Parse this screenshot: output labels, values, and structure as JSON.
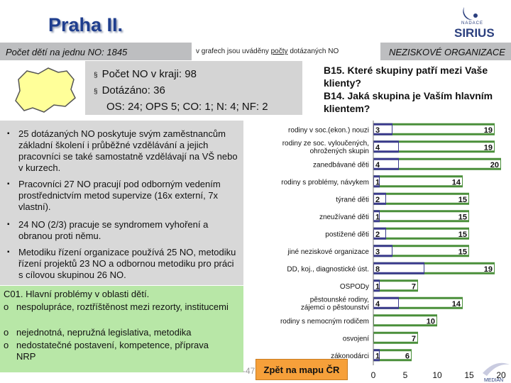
{
  "header": {
    "title": "Praha II.",
    "subtitle_left": "Počet dětí na jednu NO: 1845",
    "subtitle_mid_prefix": "v grafech jsou uváděny",
    "subtitle_mid_underlined": "počty",
    "subtitle_mid_suffix": "dotázaných NO",
    "subtitle_right": "NEZISKOVÉ ORGANIZACE"
  },
  "logo": {
    "small_text": "NADACE",
    "text": "SIRIUS",
    "bottom_text": "MEDIAN"
  },
  "counts": {
    "bullet": "§",
    "line1": "Počet NO v kraji: 98",
    "line2": "Dotázáno: 36",
    "line3": "OS: 24; OPS 5; CO: 1; N: 4; NF: 2"
  },
  "question": {
    "q1": "B15. Které skupiny patří mezi Vaše klienty?",
    "q2": "B14. Jaká skupina je Vaším hlavním klientem?"
  },
  "notes": {
    "bullet": "▪",
    "items": [
      "25 dotázaných NO poskytuje svým zaměstnancům základní školení i průběžné vzdělávání a jejich pracovníci se také samostatně vzdělávají na VŠ nebo v kurzech.",
      "Pracovníci 27 NO pracují pod odborným vedením prostřednictvím metod supervize (16x externí, 7x vlastní).",
      "24 NO (2/3) pracuje se syndromem vyhoření a obranou proti němu.",
      "Metodiku řízení organizace používá 25 NO, metodiku řízení projektů 23 NO a odbornou metodiku pro práci s cílovou skupinou 26 NO."
    ]
  },
  "problems": {
    "heading": "C01. Hlavní problémy v oblasti dětí.",
    "marker": "o",
    "items": [
      "nespolupráce, roztříštěnost mezi rezorty, institucemi",
      "nejednotná, nepružná legislativa, metodika",
      "nedostatečné postavení, kompetence, příprava NRP"
    ]
  },
  "nav": {
    "back_label": "Zpět na mapu ČR",
    "page_number": "-47"
  },
  "colors": {
    "main_bar": "#3a3a8c",
    "client_bar": "#4a8f3a",
    "problems_bg": "#b8e7a7",
    "button": "#f6a03a"
  },
  "chart_data": {
    "type": "bar",
    "orientation": "horizontal",
    "categories": [
      "rodiny v soc.(ekon.) nouzi",
      "rodiny ze soc. vyloučených, ohrožených skupin",
      "zanedbávané děti",
      "rodiny s problémy, návykem",
      "týrané děti",
      "zneužívané děti",
      "postižené děti",
      "jiné neziskové organizace",
      "DD, koj., diagnostické úst.",
      "OSPODy",
      "pěstounské rodiny, zájemci o pěstounství",
      "rodiny s nemocným rodičem",
      "osvojení",
      "zákonodárci"
    ],
    "series": [
      {
        "name": "B14. hlavní klient",
        "values": [
          3,
          4,
          4,
          1,
          2,
          1,
          2,
          3,
          8,
          1,
          4,
          null,
          null,
          1
        ]
      },
      {
        "name": "B15. klienti",
        "values": [
          19,
          19,
          20,
          14,
          15,
          15,
          15,
          15,
          19,
          7,
          14,
          10,
          7,
          6
        ]
      }
    ],
    "xticks": [
      "0",
      "5",
      "10",
      "15",
      "20"
    ],
    "xlim": [
      0,
      20
    ]
  }
}
